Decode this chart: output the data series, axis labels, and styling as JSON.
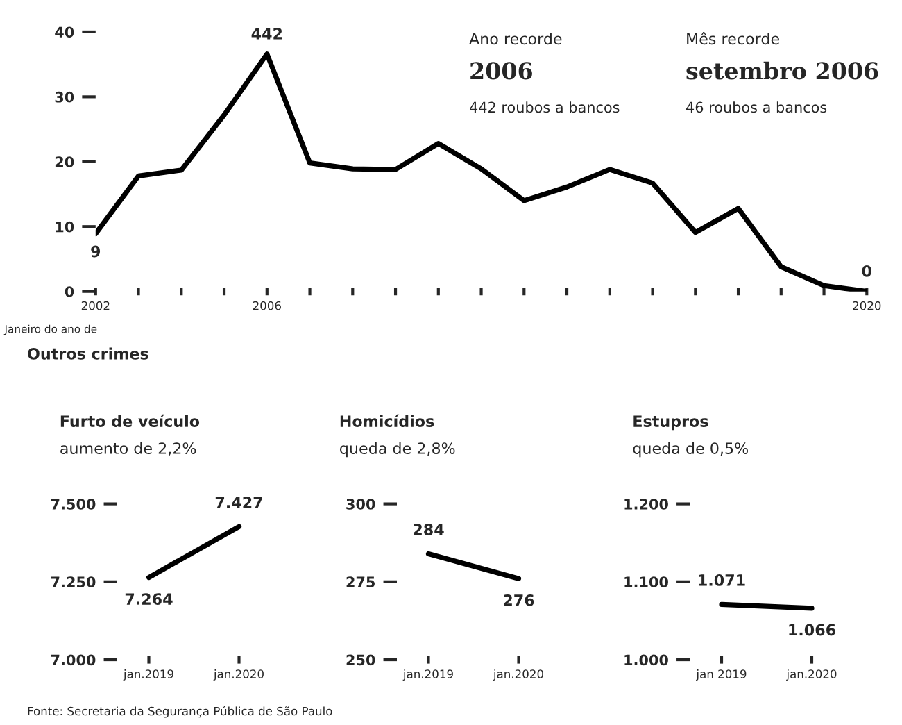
{
  "chart_data": [
    {
      "type": "line",
      "x": [
        2002,
        2003,
        2004,
        2005,
        2006,
        2007,
        2008,
        2009,
        2010,
        2011,
        2012,
        2013,
        2014,
        2015,
        2016,
        2017,
        2018,
        2019,
        2020
      ],
      "values": [
        8.9,
        17.8,
        18.7,
        27.2,
        36.6,
        19.8,
        18.9,
        18.8,
        22.8,
        18.9,
        14.0,
        16.1,
        18.8,
        16.7,
        9.1,
        12.8,
        3.8,
        0.9,
        0
      ],
      "color": "#000000",
      "xlim": [
        2002,
        2020
      ],
      "ylim": [
        0,
        40
      ],
      "yticks": [
        0,
        10,
        20,
        30,
        40
      ],
      "xticks": [
        2002,
        {
          "value": 2003,
          "label": null
        },
        {
          "value": 2004,
          "label": null
        },
        {
          "value": 2005,
          "label": null
        },
        2006,
        {
          "value": 2007,
          "label": null
        },
        {
          "value": 2008,
          "label": null
        },
        {
          "value": 2009,
          "label": null
        },
        {
          "value": 2010,
          "label": null
        },
        {
          "value": 2011,
          "label": null
        },
        {
          "value": 2012,
          "label": null
        },
        {
          "value": 2013,
          "label": null
        },
        {
          "value": 2014,
          "label": null
        },
        {
          "value": 2015,
          "label": null
        },
        {
          "value": 2016,
          "label": null
        },
        {
          "value": 2017,
          "label": null
        },
        {
          "value": 2018,
          "label": null
        },
        {
          "value": 2019,
          "label": null
        },
        2020
      ],
      "grid": false,
      "legend": false,
      "annotations": [
        "Ano recorde",
        "2006",
        "442 roubos a bancos",
        "Mês recorde",
        "setembro 2006",
        "46 roubos a bancos",
        "Janeiro do ano de",
        {
          "text": "9",
          "x": 2002,
          "y": 8.9
        },
        {
          "text": "442",
          "x": 2006,
          "y": 36.6
        },
        {
          "text": "0",
          "x": 2020,
          "y": 0
        }
      ]
    },
    {
      "type": "line",
      "title": "Furto de veículo",
      "subtitle": "aumento de 2,2%",
      "categories": [
        "jan.2019",
        "jan.2020"
      ],
      "values": [
        7264,
        7427
      ],
      "value_labels": [
        "7.264",
        "7.427"
      ],
      "color": "#000000",
      "ylim": [
        7000,
        7500
      ],
      "yticks": [
        {
          "value": 7000,
          "label": "7.000"
        },
        {
          "value": 7250,
          "label": "7.250"
        },
        {
          "value": 7500,
          "label": "7.500"
        }
      ],
      "grid": false,
      "annotations": [
        "Outros crimes",
        "Fonte: Secretaria da Segurança Pública de São Paulo"
      ]
    },
    {
      "type": "line",
      "title": "Homicídios",
      "subtitle": "queda de 2,8%",
      "categories": [
        "jan.2019",
        "jan.2020"
      ],
      "values": [
        284,
        276
      ],
      "value_labels": [
        "284",
        "276"
      ],
      "color": "#000000",
      "ylim": [
        250,
        300
      ],
      "yticks": [
        250,
        275,
        300
      ],
      "grid": false
    },
    {
      "type": "line",
      "title": "Estupros",
      "subtitle": "queda de 0,5%",
      "categories": [
        "jan 2019",
        "jan.2020"
      ],
      "values": [
        1071,
        1066
      ],
      "value_labels": [
        "1.071",
        "1.066"
      ],
      "color": "#000000",
      "ylim": [
        1000,
        1200
      ],
      "yticks": [
        {
          "value": 1000,
          "label": "1.000"
        },
        {
          "value": 1100,
          "label": "1.100"
        },
        {
          "value": 1200,
          "label": "1.200"
        }
      ],
      "grid": false
    }
  ]
}
